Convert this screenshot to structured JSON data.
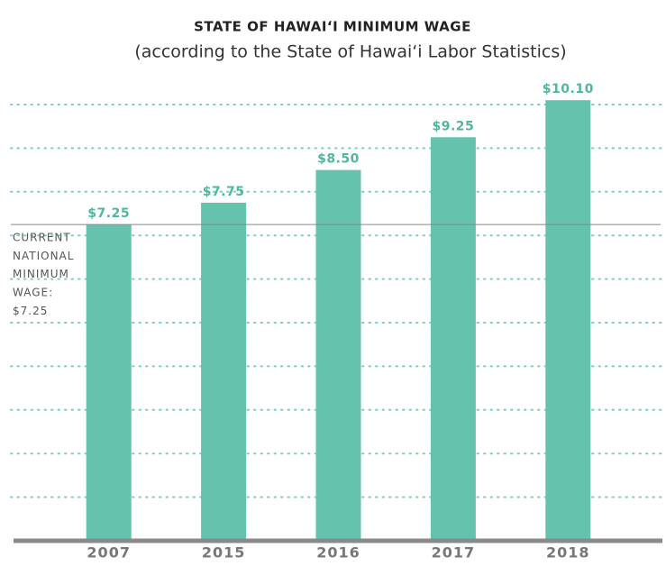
{
  "chart_data": {
    "type": "bar",
    "title": "STATE OF HAWAIʻI MINIMUM WAGE",
    "subtitle": "(according to the State of Hawaiʻi Labor Statistics)",
    "categories": [
      "2007",
      "2015",
      "2016",
      "2017",
      "2018"
    ],
    "values": [
      7.25,
      7.75,
      8.5,
      9.25,
      10.1
    ],
    "value_labels": [
      "$7.25",
      "$7.75",
      "$8.50",
      "$9.25",
      "$10.10"
    ],
    "color": "#64c2ad",
    "ylim": [
      0,
      10.5
    ],
    "yticks": [
      1,
      2,
      3,
      4,
      5,
      6,
      7,
      8,
      9,
      10
    ],
    "grid": true,
    "reference_line": {
      "value": 7.25,
      "label_lines": [
        "CURRENT",
        "NATIONAL",
        "MINIMUM",
        "WAGE:",
        "$7.25"
      ]
    }
  }
}
